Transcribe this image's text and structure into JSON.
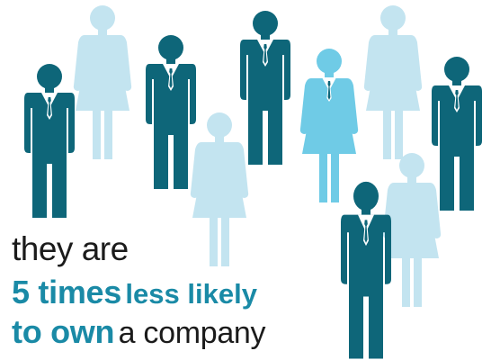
{
  "caption": {
    "line1": "they are",
    "line2_bold": "5 times",
    "line2_rest": "less likely",
    "line3_bold": "to own",
    "line3_rest": "a company"
  },
  "colors": {
    "man": "#0e6679",
    "woman_light": "#c3e4f0",
    "woman_mid": "#6fcbe6",
    "highlight": "#1a8aa6",
    "text": "#1b1b1b",
    "tie": "#0e6679"
  },
  "figures": [
    {
      "type": "man",
      "icon": "man-icon"
    },
    {
      "type": "woman",
      "icon": "woman-icon",
      "tone": "light"
    },
    {
      "type": "man",
      "icon": "man-icon"
    },
    {
      "type": "woman",
      "icon": "woman-icon",
      "tone": "light"
    },
    {
      "type": "man",
      "icon": "man-icon"
    },
    {
      "type": "woman",
      "icon": "woman-icon",
      "tone": "mid"
    },
    {
      "type": "woman",
      "icon": "woman-icon",
      "tone": "light"
    },
    {
      "type": "man",
      "icon": "man-icon"
    },
    {
      "type": "woman",
      "icon": "woman-icon",
      "tone": "light"
    },
    {
      "type": "man",
      "icon": "man-icon"
    }
  ]
}
